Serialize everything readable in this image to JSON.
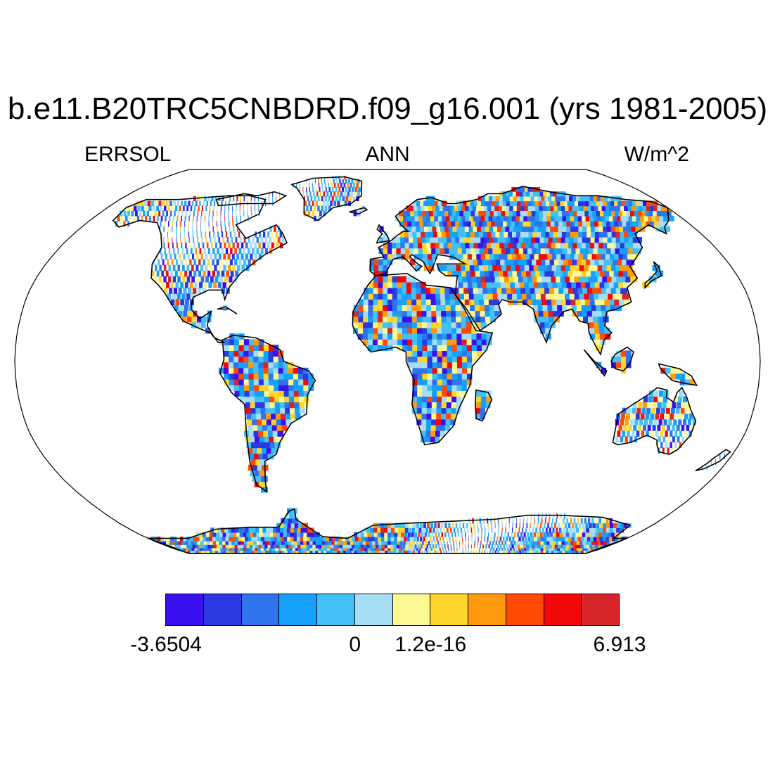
{
  "title": "b.e11.B20TRC5CNBDRD.f09_g16.001 (yrs 1981-2005)",
  "left_label": "ERRSOL",
  "center_label": "ANN",
  "right_label": "W/m^2",
  "colorbar": {
    "colors": [
      "#3b10f0",
      "#2a3ae0",
      "#2f74ec",
      "#15a0fc",
      "#44c0f6",
      "#a6dcf4",
      "#fcf894",
      "#fed52a",
      "#fe9a0b",
      "#fe4a05",
      "#f20808",
      "#d6262a"
    ],
    "tick_labels": [
      {
        "label": "-3.6504",
        "index": 0
      },
      {
        "label": "0",
        "index": 5
      },
      {
        "label": "1.2e-16",
        "index": 7
      },
      {
        "label": "6.913",
        "index": 12
      }
    ]
  },
  "map": {
    "projection": "Robinson",
    "variable": "ERRSOL",
    "colors": {
      "coast": "#000000",
      "ocean": "#ffffff"
    }
  }
}
